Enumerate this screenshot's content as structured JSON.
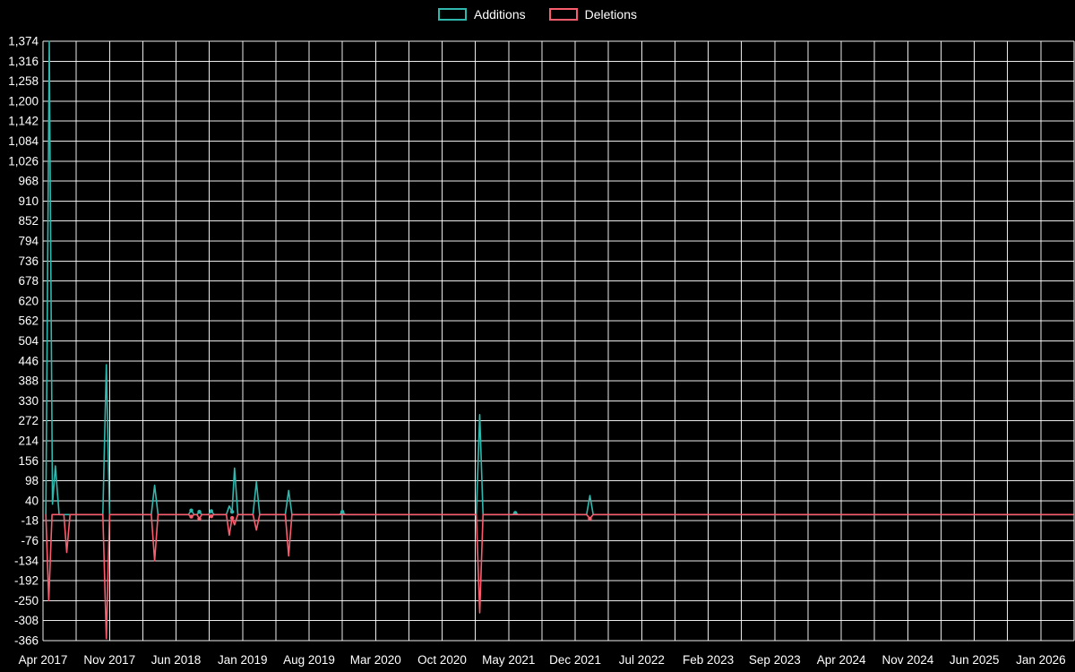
{
  "colors": {
    "background": "#000000",
    "additions": "#2fb8ae",
    "deletions": "#f95d6e",
    "grid": "#ffffff",
    "text": "#ffffff"
  },
  "legend": {
    "items": [
      {
        "label": "Additions",
        "color": "#2fb8ae"
      },
      {
        "label": "Deletions",
        "color": "#f95d6e"
      }
    ]
  },
  "chart_data": {
    "type": "line",
    "title": "",
    "xlabel": "",
    "ylabel": "",
    "legend_position": "top-center",
    "grid": true,
    "x_unit": "months since Apr 2017; x tick spacing = 7 months",
    "x_tick_labels": [
      "Apr 2017",
      "Nov 2017",
      "Jun 2018",
      "Jan 2019",
      "Aug 2019",
      "Mar 2020",
      "Oct 2020",
      "May 2021",
      "Dec 2021",
      "Jul 2022",
      "Feb 2023",
      "Sep 2023",
      "Apr 2024",
      "Nov 2024",
      "Jun 2025",
      "Jan 2026"
    ],
    "y_ticks": [
      1374,
      1316,
      1258,
      1200,
      1142,
      1084,
      1026,
      968,
      910,
      852,
      794,
      736,
      678,
      620,
      562,
      504,
      446,
      388,
      330,
      272,
      214,
      156,
      98,
      40,
      -18,
      -76,
      -134,
      -192,
      -250,
      -308,
      -366
    ],
    "y_tick_labels": [
      "1,374",
      "1,316",
      "1,258",
      "1,200",
      "1,142",
      "1,084",
      "1,026",
      "968",
      "910",
      "852",
      "794",
      "736",
      "678",
      "620",
      "562",
      "504",
      "446",
      "388",
      "330",
      "272",
      "214",
      "156",
      "98",
      "40",
      "-18",
      "-76",
      "-134",
      "-192",
      "-250",
      "-308",
      "-366"
    ],
    "ylim": [
      -366,
      1374
    ],
    "xlim_months": [
      0,
      108.4
    ],
    "series": [
      {
        "name": "Additions",
        "color": "#2fb8ae",
        "points": [
          [
            0.3,
            0
          ],
          [
            0.66,
            1374
          ],
          [
            1.0,
            30
          ],
          [
            1.3,
            141
          ],
          [
            1.7,
            0
          ],
          [
            6.3,
            0
          ],
          [
            6.66,
            435
          ],
          [
            7.0,
            0
          ],
          [
            11.4,
            0
          ],
          [
            11.75,
            85
          ],
          [
            12.1,
            0
          ],
          [
            15.3,
            0
          ],
          [
            15.6,
            12
          ],
          [
            15.9,
            0
          ],
          [
            16.2,
            0
          ],
          [
            16.45,
            8
          ],
          [
            16.7,
            0
          ],
          [
            17.4,
            0
          ],
          [
            17.7,
            10
          ],
          [
            18.0,
            0
          ],
          [
            19.3,
            0
          ],
          [
            19.6,
            25
          ],
          [
            19.9,
            8
          ],
          [
            20.15,
            135
          ],
          [
            20.5,
            0
          ],
          [
            22.1,
            0
          ],
          [
            22.45,
            95
          ],
          [
            22.8,
            0
          ],
          [
            25.5,
            0
          ],
          [
            25.85,
            70
          ],
          [
            26.2,
            0
          ],
          [
            31.2,
            0
          ],
          [
            31.5,
            8
          ],
          [
            31.8,
            0
          ],
          [
            45.6,
            0
          ],
          [
            45.95,
            290
          ],
          [
            46.3,
            0
          ],
          [
            49.4,
            0
          ],
          [
            49.7,
            5
          ],
          [
            50.0,
            0
          ],
          [
            57.2,
            0
          ],
          [
            57.55,
            55
          ],
          [
            57.9,
            0
          ],
          [
            108.4,
            0
          ]
        ]
      },
      {
        "name": "Deletions",
        "color": "#f95d6e",
        "points": [
          [
            0.3,
            0
          ],
          [
            0.6,
            -250
          ],
          [
            0.95,
            0
          ],
          [
            2.2,
            0
          ],
          [
            2.5,
            -110
          ],
          [
            2.85,
            0
          ],
          [
            6.3,
            0
          ],
          [
            6.66,
            -360
          ],
          [
            7.0,
            0
          ],
          [
            11.4,
            0
          ],
          [
            11.75,
            -134
          ],
          [
            12.1,
            0
          ],
          [
            15.3,
            0
          ],
          [
            15.6,
            -6
          ],
          [
            15.9,
            0
          ],
          [
            16.2,
            0
          ],
          [
            16.45,
            -12
          ],
          [
            16.7,
            0
          ],
          [
            17.4,
            0
          ],
          [
            17.7,
            -5
          ],
          [
            18.0,
            0
          ],
          [
            19.3,
            0
          ],
          [
            19.6,
            -60
          ],
          [
            19.9,
            -10
          ],
          [
            20.15,
            -30
          ],
          [
            20.5,
            0
          ],
          [
            22.1,
            0
          ],
          [
            22.45,
            -45
          ],
          [
            22.8,
            0
          ],
          [
            25.5,
            0
          ],
          [
            25.85,
            -120
          ],
          [
            26.2,
            0
          ],
          [
            45.6,
            0
          ],
          [
            45.95,
            -285
          ],
          [
            46.3,
            0
          ],
          [
            57.2,
            0
          ],
          [
            57.55,
            -12
          ],
          [
            57.9,
            0
          ],
          [
            108.4,
            0
          ]
        ]
      }
    ]
  }
}
